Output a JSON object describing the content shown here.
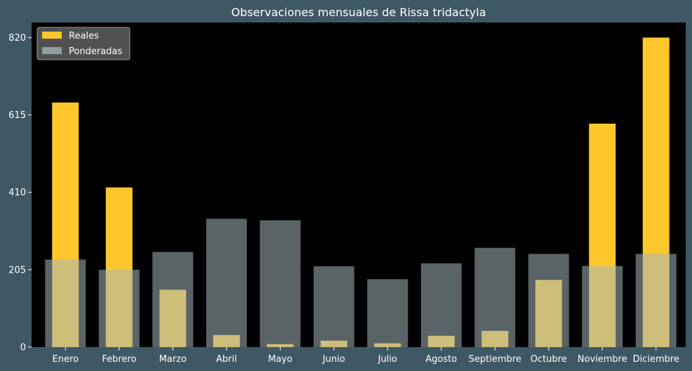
{
  "chart_data": {
    "type": "bar",
    "title": "Observaciones mensuales de Rissa tridactyla",
    "xlabel": "",
    "ylabel": "",
    "categories": [
      "Enero",
      "Febrero",
      "Marzo",
      "Abril",
      "Mayo",
      "Junio",
      "Julio",
      "Agosto",
      "Septiembre",
      "Octubre",
      "Noviembre",
      "Diciembre"
    ],
    "series": [
      {
        "name": "Reales",
        "color": "#ffc72c",
        "values": [
          648,
          423,
          152,
          32,
          8,
          17,
          10,
          30,
          43,
          178,
          592,
          820
        ]
      },
      {
        "name": "Ponderadas",
        "color": "#a4b6bb",
        "opacity": 0.55,
        "values": [
          232,
          205,
          252,
          340,
          336,
          214,
          180,
          222,
          263,
          247,
          215,
          247
        ]
      }
    ],
    "yticks": [
      0,
      205,
      410,
      615,
      820
    ],
    "ylim": [
      0,
      860
    ],
    "legend": "top-left",
    "grid": false,
    "plot_background": "#000000"
  }
}
